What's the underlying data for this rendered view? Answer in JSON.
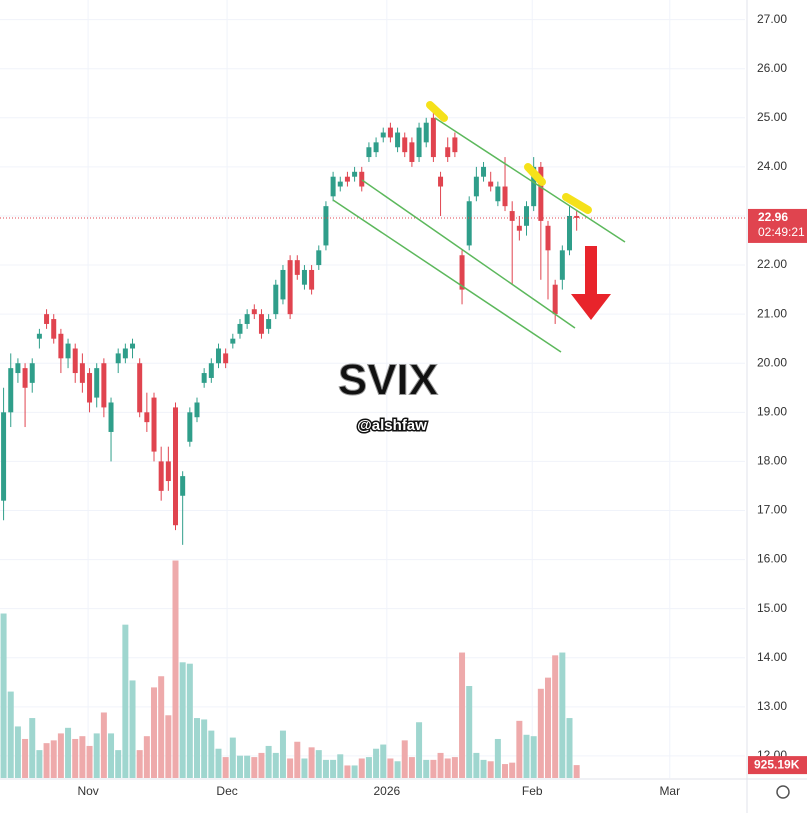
{
  "chart_data": {
    "type": "candlestick",
    "annotations": {
      "title": "SVIX",
      "author": "@alshfaw",
      "countdown": "02:49:21"
    },
    "up_color": "#2f9e8a",
    "down_color": "#e0444f",
    "volume_up_color": "#9fd6cf",
    "volume_down_color": "#eeaaab",
    "grid": true,
    "xlim": [
      -0.5,
      103.5
    ],
    "xticks": [
      {
        "value": 11.8,
        "label": "Nov"
      },
      {
        "value": 31.2,
        "label": "Dec"
      },
      {
        "value": 53.5,
        "label": "2026"
      },
      {
        "value": 73.8,
        "label": "Feb"
      },
      {
        "value": 93,
        "label": "Mar"
      }
    ],
    "ylim": [
      11.55,
      27.4
    ],
    "yticks": [
      {
        "value": 27,
        "label": "27.00"
      },
      {
        "value": 26,
        "label": "26.00"
      },
      {
        "value": 25,
        "label": "25.00"
      },
      {
        "value": 24,
        "label": "24.00"
      },
      {
        "value": 23,
        "label": "23.00"
      },
      {
        "value": 22,
        "label": "22.00"
      },
      {
        "value": 21,
        "label": "21.00"
      },
      {
        "value": 20,
        "label": "20.00"
      },
      {
        "value": 19,
        "label": "19.00"
      },
      {
        "value": 18,
        "label": "18.00"
      },
      {
        "value": 17,
        "label": "17.00"
      },
      {
        "value": 16,
        "label": "16.00"
      },
      {
        "value": 15,
        "label": "15.00"
      },
      {
        "value": 14,
        "label": "14.00"
      },
      {
        "value": 13,
        "label": "13.00"
      },
      {
        "value": 12,
        "label": "12.00"
      }
    ],
    "ohlc": [
      [
        17.2,
        19.5,
        16.8,
        19.0
      ],
      [
        19.0,
        20.2,
        18.7,
        19.9
      ],
      [
        19.8,
        20.1,
        19.6,
        20.0
      ],
      [
        19.9,
        20.0,
        18.7,
        19.5
      ],
      [
        19.6,
        20.1,
        19.4,
        20.0
      ],
      [
        20.5,
        20.7,
        20.3,
        20.6
      ],
      [
        21.0,
        21.1,
        20.7,
        20.8
      ],
      [
        20.9,
        21.0,
        20.4,
        20.5
      ],
      [
        20.6,
        20.7,
        19.8,
        20.1
      ],
      [
        20.1,
        20.5,
        19.9,
        20.4
      ],
      [
        20.3,
        20.4,
        19.6,
        19.8
      ],
      [
        20.0,
        20.2,
        19.4,
        19.6
      ],
      [
        19.8,
        19.9,
        19.0,
        19.2
      ],
      [
        19.3,
        20.0,
        19.1,
        19.9
      ],
      [
        20.0,
        20.1,
        18.9,
        19.1
      ],
      [
        18.6,
        19.3,
        18.0,
        19.2
      ],
      [
        20.0,
        20.3,
        19.8,
        20.2
      ],
      [
        20.1,
        20.4,
        20.0,
        20.3
      ],
      [
        20.3,
        20.5,
        20.1,
        20.4
      ],
      [
        20.0,
        20.1,
        18.9,
        19.0
      ],
      [
        19.0,
        19.4,
        18.6,
        18.8
      ],
      [
        19.3,
        19.4,
        18.0,
        18.2
      ],
      [
        18.0,
        18.3,
        17.2,
        17.4
      ],
      [
        18.0,
        18.3,
        17.4,
        17.6
      ],
      [
        19.1,
        19.2,
        16.6,
        16.7
      ],
      [
        17.3,
        17.8,
        16.3,
        17.7
      ],
      [
        18.4,
        19.1,
        18.3,
        19.0
      ],
      [
        18.9,
        19.3,
        18.8,
        19.2
      ],
      [
        19.6,
        19.9,
        19.5,
        19.8
      ],
      [
        19.7,
        20.1,
        19.6,
        20.0
      ],
      [
        20.0,
        20.4,
        19.9,
        20.3
      ],
      [
        20.2,
        20.3,
        19.9,
        20.0
      ],
      [
        20.4,
        20.6,
        20.3,
        20.5
      ],
      [
        20.6,
        20.9,
        20.5,
        20.8
      ],
      [
        20.8,
        21.1,
        20.7,
        21.0
      ],
      [
        21.1,
        21.2,
        20.9,
        21.0
      ],
      [
        21.0,
        21.1,
        20.5,
        20.6
      ],
      [
        20.7,
        21.0,
        20.6,
        20.9
      ],
      [
        21.0,
        21.7,
        20.9,
        21.6
      ],
      [
        21.3,
        22.0,
        21.2,
        21.9
      ],
      [
        22.1,
        22.2,
        20.9,
        21.0
      ],
      [
        22.1,
        22.2,
        21.7,
        21.8
      ],
      [
        21.6,
        22.0,
        21.5,
        21.9
      ],
      [
        21.9,
        22.0,
        21.4,
        21.5
      ],
      [
        22.0,
        22.4,
        21.9,
        22.3
      ],
      [
        22.4,
        23.3,
        22.3,
        23.2
      ],
      [
        23.4,
        23.9,
        23.3,
        23.8
      ],
      [
        23.6,
        23.8,
        23.5,
        23.7
      ],
      [
        23.8,
        23.9,
        23.6,
        23.7
      ],
      [
        23.8,
        24.0,
        23.7,
        23.9
      ],
      [
        23.9,
        24.0,
        23.5,
        23.6
      ],
      [
        24.2,
        24.5,
        24.1,
        24.4
      ],
      [
        24.3,
        24.6,
        24.2,
        24.5
      ],
      [
        24.6,
        24.8,
        24.5,
        24.7
      ],
      [
        24.8,
        24.9,
        24.5,
        24.6
      ],
      [
        24.4,
        24.8,
        24.3,
        24.7
      ],
      [
        24.6,
        24.7,
        24.2,
        24.3
      ],
      [
        24.5,
        24.6,
        24.0,
        24.1
      ],
      [
        24.2,
        24.9,
        24.1,
        24.8
      ],
      [
        24.5,
        25.0,
        24.4,
        24.9
      ],
      [
        25.0,
        25.1,
        24.1,
        24.2
      ],
      [
        23.8,
        23.9,
        23.0,
        23.6
      ],
      [
        24.4,
        24.6,
        24.1,
        24.2
      ],
      [
        24.6,
        24.7,
        24.2,
        24.3
      ],
      [
        22.2,
        22.3,
        21.2,
        21.5
      ],
      [
        22.4,
        23.4,
        22.3,
        23.3
      ],
      [
        23.4,
        24.0,
        23.3,
        23.8
      ],
      [
        23.8,
        24.1,
        23.7,
        24.0
      ],
      [
        23.7,
        23.9,
        23.5,
        23.6
      ],
      [
        23.3,
        23.7,
        23.2,
        23.6
      ],
      [
        23.6,
        24.2,
        23.1,
        23.2
      ],
      [
        23.1,
        23.3,
        21.6,
        22.9
      ],
      [
        22.8,
        23.0,
        22.5,
        22.7
      ],
      [
        22.8,
        23.3,
        22.6,
        23.2
      ],
      [
        23.2,
        24.2,
        23.1,
        24.0
      ],
      [
        24.0,
        24.1,
        21.7,
        22.9
      ],
      [
        22.8,
        22.9,
        21.3,
        22.3
      ],
      [
        21.6,
        21.7,
        20.8,
        21.0
      ],
      [
        21.7,
        22.4,
        21.5,
        22.3
      ],
      [
        22.3,
        23.2,
        22.2,
        23.0
      ],
      [
        23.0,
        23.1,
        22.7,
        22.96
      ]
    ],
    "close_label": "22.96",
    "volume": [
      11800,
      6200,
      3700,
      2800,
      4300,
      2000,
      2500,
      2700,
      3200,
      3600,
      2800,
      3000,
      2300,
      3200,
      4700,
      3200,
      2000,
      11000,
      7000,
      2000,
      3000,
      6500,
      7300,
      4500,
      15600,
      8300,
      8200,
      4300,
      4200,
      3400,
      2100,
      1500,
      2900,
      1600,
      1600,
      1500,
      1800,
      2300,
      1800,
      3400,
      1400,
      2600,
      1400,
      2200,
      2000,
      1300,
      1300,
      1700,
      900,
      900,
      1400,
      1500,
      2100,
      2400,
      1400,
      1200,
      2700,
      1500,
      4000,
      1300,
      1300,
      1800,
      1400,
      1500,
      9000,
      6600,
      1800,
      1300,
      1200,
      2800,
      1000,
      1100,
      4100,
      3100,
      3000,
      6400,
      7200,
      8800,
      9000,
      4300,
      925.19
    ],
    "volume_lim": [
      0,
      16500
    ],
    "volume_last_label": "925.19K"
  }
}
